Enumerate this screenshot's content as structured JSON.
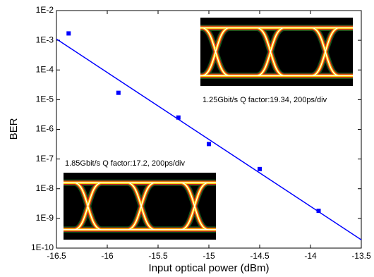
{
  "chart_data": {
    "type": "scatter",
    "x_label": "Input optical power (dBm)",
    "y_label": "BER",
    "log_y": true,
    "xlim": [
      -16.5,
      -13.5
    ],
    "xticks": [
      -16.5,
      -16,
      -15.5,
      -15,
      -14.5,
      -14,
      -13.5
    ],
    "ylim": [
      1e-10,
      0.01
    ],
    "yticks": [
      {
        "value": 1e-10,
        "label": "1E-10"
      },
      {
        "value": 1e-09,
        "label": "1E-9"
      },
      {
        "value": 1e-08,
        "label": "1E-8"
      },
      {
        "value": 1e-07,
        "label": "1E-7"
      },
      {
        "value": 1e-06,
        "label": "1E-6"
      },
      {
        "value": 1e-05,
        "label": "1E-5"
      },
      {
        "value": 0.0001,
        "label": "1E-4"
      },
      {
        "value": 0.001,
        "label": "1E-3"
      },
      {
        "value": 0.01,
        "label": "1E-2"
      }
    ],
    "series": [
      {
        "color": "#0000ff",
        "marker": "square",
        "x": [
          -16.38,
          -15.89,
          -15.3,
          -15.0,
          -14.5,
          -13.92
        ],
        "values": [
          0.0017,
          1.7e-05,
          2.5e-06,
          3.2e-07,
          4.6e-08,
          1.8e-09
        ]
      },
      {
        "color": "#0000ff",
        "marker": "line",
        "x": [
          -16.5,
          -13.5
        ],
        "values": [
          0.0011,
          1.9e-10
        ]
      }
    ],
    "insets": [
      {
        "caption": "1.25Gbit/s Q factor:19.34, 200ps/div"
      },
      {
        "caption": "1.85Gbit/s Q factor:17.2, 200ps/div"
      }
    ]
  }
}
